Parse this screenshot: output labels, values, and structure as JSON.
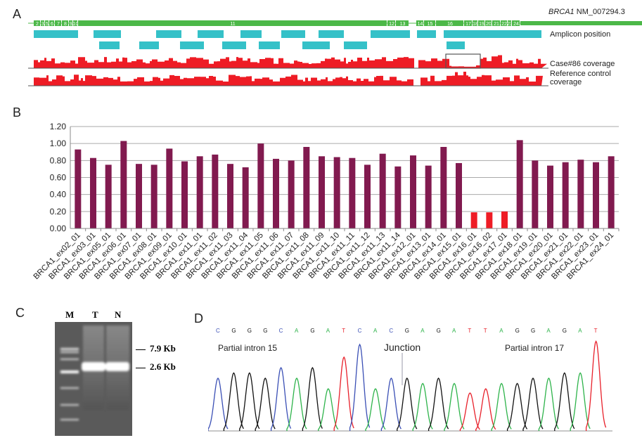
{
  "panels": {
    "a": "A",
    "b": "B",
    "c": "C",
    "d": "D"
  },
  "panel_a": {
    "gene": "BRCA1",
    "transcript": "NM_007294.3",
    "exons": [
      "2",
      "3",
      "5",
      "6",
      "7",
      "8",
      "9",
      "10",
      "11",
      "12",
      "13",
      "14",
      "15",
      "16",
      "17",
      "18",
      "19",
      "20",
      "21",
      "22",
      "23",
      "24"
    ],
    "track_labels": {
      "amplicon": "Amplicon position",
      "case": "Case#86 coverage",
      "reference": "Reference  control coverage"
    },
    "colors": {
      "exon": "#4cb848",
      "amplicon": "#35c1c8",
      "coverage": "#ee1c25"
    }
  },
  "chart_data": {
    "type": "bar",
    "categories": [
      "BRCA1_ex02_01",
      "BRCA1_ex03_01",
      "BRCA1_ex05_01",
      "BRCA1_ex06_01",
      "BRCA1_ex07_01",
      "BRCA1_ex08_01",
      "BRCA1_ex09_01",
      "BRCA1_ex10_01",
      "BRCA1_ex11_01",
      "BRCA1_ex11_02",
      "BRCA1_ex11_03",
      "BRCA1_ex11_04",
      "BRCA1_ex11_05",
      "BRCA1_ex11_06",
      "BRCA1_ex11_07",
      "BRCA1_ex11_08",
      "BRCA1_ex11_09",
      "BRCA1_ex11_10",
      "BRCA1_ex11_11",
      "BRCA1_ex11_12",
      "BRCA1_ex11_13",
      "BRCA1_ex11_14",
      "BRCA1_ex12_01",
      "BRCA1_ex13_01",
      "BRCA1_ex14_01",
      "BRCA1_ex15_01",
      "BRCA1_ex16_01",
      "BRCA1_ex16_02",
      "BRCA1_ex17_01",
      "BRCA1_ex18_01",
      "BRCA1_ex19_01",
      "BRCA1_ex20_01",
      "BRCA1_ex21_01",
      "BRCA1_ex22_01",
      "BRCA1_ex23_01",
      "BRCA1_ex24_01"
    ],
    "values": [
      0.93,
      0.83,
      0.75,
      1.03,
      0.76,
      0.75,
      0.94,
      0.79,
      0.85,
      0.87,
      0.76,
      0.72,
      1.0,
      0.82,
      0.8,
      0.96,
      0.85,
      0.84,
      0.83,
      0.75,
      0.88,
      0.73,
      0.86,
      0.74,
      0.96,
      0.77,
      0.19,
      0.19,
      0.2,
      1.04,
      0.8,
      0.74,
      0.78,
      0.81,
      0.78,
      0.85
    ],
    "highlighted": [
      "BRCA1_ex16_01",
      "BRCA1_ex16_02",
      "BRCA1_ex17_01"
    ],
    "ylim": [
      0,
      1.2
    ],
    "yticks": [
      "0.00",
      "0.20",
      "0.40",
      "0.60",
      "0.80",
      "1.00",
      "1.20"
    ],
    "grid": true,
    "colors": {
      "bar": "#811a4f",
      "highlight": "#ee1c25"
    }
  },
  "panel_c": {
    "lanes": [
      "M",
      "T",
      "N"
    ],
    "markers": [
      "7.9 Kb",
      "2.6 Kb"
    ]
  },
  "panel_d": {
    "sequence": [
      "C",
      "G",
      "G",
      "G",
      "C",
      "A",
      "G",
      "A",
      "T",
      "C",
      "A",
      "C",
      "G",
      "A",
      "G",
      "A",
      "T",
      "T",
      "A",
      "G",
      "G",
      "A",
      "G",
      "A",
      "T"
    ],
    "labels": {
      "left": "Partial intron 15",
      "junction": "Junction",
      "right": "Partial intron 17"
    },
    "base_colors": {
      "A": "#2db34a",
      "C": "#3a4fb5",
      "G": "#111111",
      "T": "#e8202a"
    }
  }
}
